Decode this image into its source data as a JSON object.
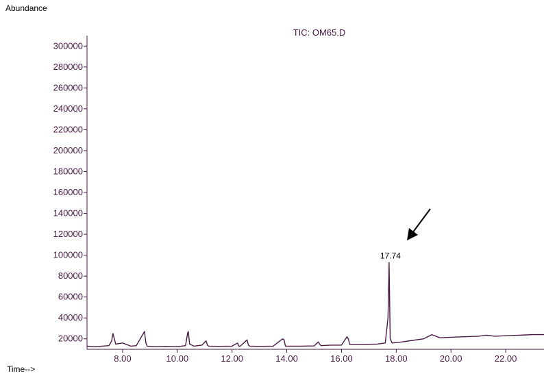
{
  "chart_data": {
    "type": "line",
    "title": "TIC: OM65.D",
    "ylabel": "Abundance",
    "xlabel": "Time-->",
    "xlim": [
      6.7,
      23.4
    ],
    "ylim": [
      10000,
      310000
    ],
    "yticks": [
      20000,
      40000,
      60000,
      80000,
      100000,
      120000,
      140000,
      160000,
      180000,
      200000,
      220000,
      240000,
      260000,
      280000,
      300000
    ],
    "ytick_labels": [
      "20000",
      "40000",
      "60000",
      "80000",
      "100000",
      "120000",
      "140000",
      "160000",
      "180000",
      "200000",
      "220000",
      "240000",
      "260000",
      "280000",
      "300000"
    ],
    "xticks": [
      8.0,
      10.0,
      12.0,
      14.0,
      16.0,
      18.0,
      20.0,
      22.0
    ],
    "xtick_labels": [
      "8.00",
      "10.00",
      "12.00",
      "14.00",
      "16.00",
      "18.00",
      "20.00",
      "22.00"
    ],
    "line_color": "#4a1942",
    "grid": false,
    "series": [
      {
        "x": [
          6.7,
          7.0,
          7.5,
          7.6,
          7.65,
          7.7,
          7.75,
          8.0,
          8.3,
          8.5,
          8.8,
          8.85,
          8.9,
          9.2,
          9.6,
          10.0,
          10.3,
          10.38,
          10.4,
          10.45,
          10.6,
          10.9,
          11.05,
          11.1,
          11.15,
          11.5,
          12.0,
          12.2,
          12.25,
          12.3,
          12.55,
          12.6,
          12.65,
          13.0,
          13.5,
          13.85,
          13.9,
          13.95,
          14.5,
          15.0,
          15.15,
          15.2,
          15.25,
          15.6,
          16.0,
          16.2,
          16.25,
          16.3,
          16.8,
          17.3,
          17.6,
          17.7,
          17.74,
          17.78,
          17.85,
          18.2,
          18.6,
          19.0,
          19.3,
          19.6,
          20.0,
          20.5,
          21.0,
          21.3,
          21.6,
          22.0,
          22.5,
          23.0,
          23.4
        ],
        "y": [
          13000,
          12500,
          13500,
          18000,
          25000,
          20000,
          15000,
          16000,
          13000,
          13500,
          27000,
          16000,
          13000,
          12500,
          12800,
          12500,
          13500,
          26000,
          27000,
          15000,
          13000,
          14000,
          18000,
          14000,
          13000,
          12800,
          13000,
          16000,
          13000,
          13000,
          19000,
          14000,
          13000,
          12800,
          13000,
          20000,
          19000,
          13000,
          13000,
          13200,
          17000,
          15000,
          13500,
          14000,
          14000,
          22000,
          20000,
          14500,
          14500,
          15000,
          16000,
          40000,
          93000,
          20000,
          16000,
          17000,
          18500,
          20000,
          24000,
          21000,
          21500,
          22000,
          22500,
          23500,
          22500,
          23000,
          23500,
          24000,
          24000
        ]
      }
    ],
    "annotations": [
      {
        "text": "17.74",
        "x": 17.74,
        "y": 93000
      }
    ]
  }
}
